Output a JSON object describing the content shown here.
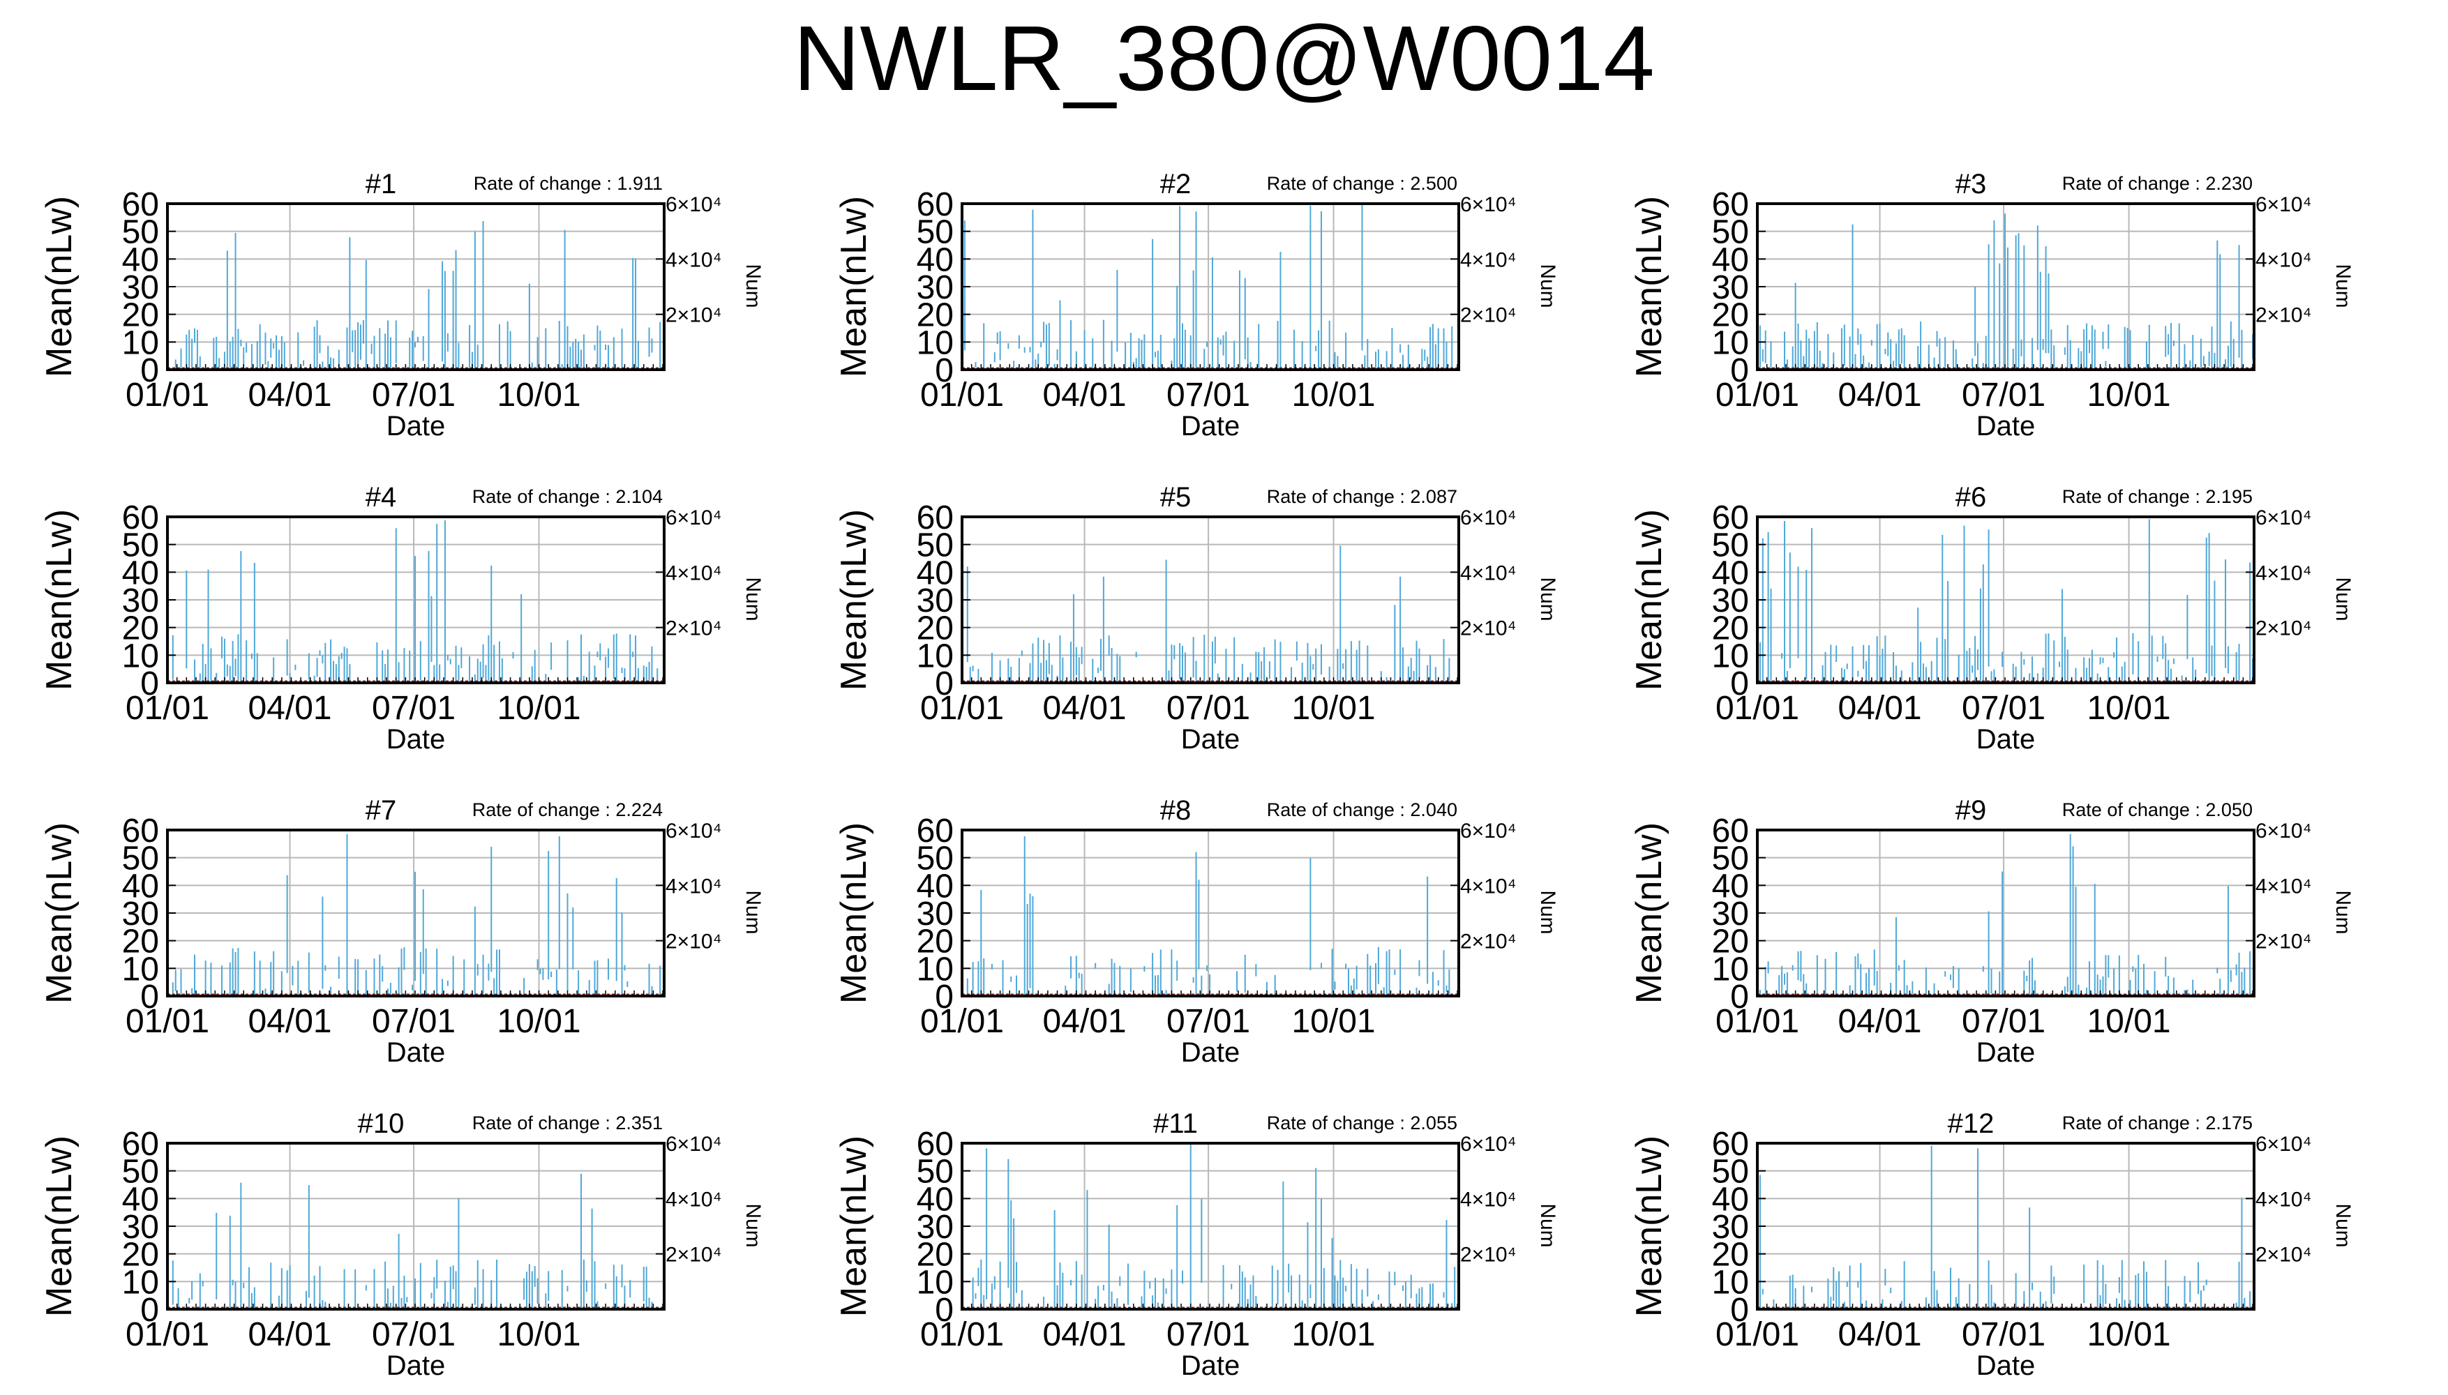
{
  "page": {
    "title": "NWLR_380@W0014"
  },
  "colors": {
    "bar": "#4fa8d8",
    "grid": "#b8b8b8",
    "axis": "#000000",
    "baseline": "#8a2a2a"
  },
  "chart_data": [
    {
      "panel": "#1",
      "type": "bar",
      "rate_label": "Rate of change : 1.911",
      "xlabel": "Date",
      "ylabel": "Mean(nLw)",
      "y2label": "Num",
      "x_ticks": [
        "01/01",
        "04/01",
        "07/01",
        "10/01"
      ],
      "y_ticks": [
        0,
        10,
        20,
        30,
        40,
        50,
        60
      ],
      "y2_ticks": [
        "2×10⁴",
        "4×10⁴",
        "6×10⁴"
      ],
      "ylim": [
        0,
        60
      ],
      "grid": true,
      "seed": 11,
      "max_value": 60,
      "density": 0.55,
      "high_days": [
        [
          140,
          190
        ],
        [
          200,
          260
        ]
      ]
    },
    {
      "panel": "#2",
      "type": "bar",
      "rate_label": "Rate of change : 2.500",
      "xlabel": "Date",
      "ylabel": "Mean(nLw)",
      "y2label": "Num",
      "x_ticks": [
        "01/01",
        "04/01",
        "07/01",
        "10/01"
      ],
      "y_ticks": [
        0,
        10,
        20,
        30,
        40,
        50,
        60
      ],
      "y2_ticks": [
        "2×10⁴",
        "4×10⁴",
        "6×10⁴"
      ],
      "ylim": [
        0,
        60
      ],
      "grid": true,
      "seed": 22,
      "max_value": 60,
      "density": 0.55,
      "high_days": [
        [
          165,
          175
        ],
        [
          205,
          215
        ]
      ]
    },
    {
      "panel": "#3",
      "type": "bar",
      "rate_label": "Rate of change : 2.230",
      "xlabel": "Date",
      "ylabel": "Mean(nLw)",
      "y2label": "Num",
      "x_ticks": [
        "01/01",
        "04/01",
        "07/01",
        "10/01"
      ],
      "y_ticks": [
        0,
        10,
        20,
        30,
        40,
        50,
        60
      ],
      "y2_ticks": [
        "2×10⁴",
        "4×10⁴",
        "6×10⁴"
      ],
      "ylim": [
        0,
        60
      ],
      "grid": true,
      "seed": 33,
      "max_value": 60,
      "density": 0.55,
      "high_days": [
        [
          170,
          215
        ]
      ]
    },
    {
      "panel": "#4",
      "type": "bar",
      "rate_label": "Rate of change : 2.104",
      "xlabel": "Date",
      "ylabel": "Mean(nLw)",
      "y2label": "Num",
      "x_ticks": [
        "01/01",
        "04/01",
        "07/01",
        "10/01"
      ],
      "y_ticks": [
        0,
        10,
        20,
        30,
        40,
        50,
        60
      ],
      "y2_ticks": [
        "2×10⁴",
        "4×10⁴",
        "6×10⁴"
      ],
      "ylim": [
        0,
        60
      ],
      "grid": true,
      "seed": 44,
      "max_value": 60,
      "density": 0.55,
      "high_days": [
        [
          145,
          200
        ]
      ]
    },
    {
      "panel": "#5",
      "type": "bar",
      "rate_label": "Rate of change : 2.087",
      "xlabel": "Date",
      "ylabel": "Mean(nLw)",
      "y2label": "Num",
      "x_ticks": [
        "01/01",
        "04/01",
        "07/01",
        "10/01"
      ],
      "y_ticks": [
        0,
        10,
        20,
        30,
        40,
        50,
        60
      ],
      "y2_ticks": [
        "2×10⁴",
        "4×10⁴",
        "6×10⁴"
      ],
      "ylim": [
        0,
        60
      ],
      "grid": true,
      "seed": 55,
      "max_value": 60,
      "density": 0.5,
      "high_days": [
        [
          120,
          150
        ]
      ]
    },
    {
      "panel": "#6",
      "type": "bar",
      "rate_label": "Rate of change : 2.195",
      "xlabel": "Date",
      "ylabel": "Mean(nLw)",
      "y2label": "Num",
      "x_ticks": [
        "01/01",
        "04/01",
        "07/01",
        "10/01"
      ],
      "y_ticks": [
        0,
        10,
        20,
        30,
        40,
        50,
        60
      ],
      "y2_ticks": [
        "2×10⁴",
        "4×10⁴",
        "6×10⁴"
      ],
      "ylim": [
        0,
        60
      ],
      "grid": true,
      "seed": 66,
      "max_value": 60,
      "density": 0.5,
      "high_days": [
        [
          0,
          60
        ],
        [
          150,
          175
        ],
        [
          325,
          365
        ]
      ]
    },
    {
      "panel": "#7",
      "type": "bar",
      "rate_label": "Rate of change : 2.224",
      "xlabel": "Date",
      "ylabel": "Mean(nLw)",
      "y2label": "Num",
      "x_ticks": [
        "01/01",
        "04/01",
        "07/01",
        "10/01"
      ],
      "y_ticks": [
        0,
        10,
        20,
        30,
        40,
        50,
        60
      ],
      "y2_ticks": [
        "2×10⁴",
        "4×10⁴",
        "6×10⁴"
      ],
      "ylim": [
        0,
        60
      ],
      "grid": true,
      "seed": 77,
      "max_value": 60,
      "density": 0.45,
      "high_days": [
        [
          0,
          30
        ],
        [
          180,
          190
        ],
        [
          280,
          300
        ]
      ]
    },
    {
      "panel": "#8",
      "type": "bar",
      "rate_label": "Rate of change : 2.040",
      "xlabel": "Date",
      "ylabel": "Mean(nLw)",
      "y2label": "Num",
      "x_ticks": [
        "01/01",
        "04/01",
        "07/01",
        "10/01"
      ],
      "y_ticks": [
        0,
        10,
        20,
        30,
        40,
        50,
        60
      ],
      "y2_ticks": [
        "2×10⁴",
        "4×10⁴",
        "6×10⁴"
      ],
      "ylim": [
        0,
        60
      ],
      "grid": true,
      "seed": 88,
      "max_value": 60,
      "density": 0.4,
      "high_days": [
        [
          40,
          60
        ],
        [
          160,
          175
        ]
      ]
    },
    {
      "panel": "#9",
      "type": "bar",
      "rate_label": "Rate of change : 2.050",
      "xlabel": "Date",
      "ylabel": "Mean(nLw)",
      "y2label": "Num",
      "x_ticks": [
        "01/01",
        "04/01",
        "07/01",
        "10/01"
      ],
      "y_ticks": [
        0,
        10,
        20,
        30,
        40,
        50,
        60
      ],
      "y2_ticks": [
        "2×10⁴",
        "4×10⁴",
        "6×10⁴"
      ],
      "ylim": [
        0,
        60
      ],
      "grid": true,
      "seed": 99,
      "max_value": 60,
      "density": 0.4,
      "high_days": [
        [
          160,
          170
        ]
      ]
    },
    {
      "panel": "#10",
      "type": "bar",
      "rate_label": "Rate of change : 2.351",
      "xlabel": "Date",
      "ylabel": "Mean(nLw)",
      "y2label": "Num",
      "x_ticks": [
        "01/01",
        "04/01",
        "07/01",
        "10/01"
      ],
      "y_ticks": [
        0,
        10,
        20,
        30,
        40,
        50,
        60
      ],
      "y2_ticks": [
        "2×10⁴",
        "4×10⁴",
        "6×10⁴"
      ],
      "ylim": [
        0,
        60
      ],
      "grid": true,
      "seed": 111,
      "max_value": 60,
      "density": 0.4,
      "high_days": [
        [
          30,
          40
        ],
        [
          280,
          300
        ]
      ]
    },
    {
      "panel": "#11",
      "type": "bar",
      "rate_label": "Rate of change : 2.055",
      "xlabel": "Date",
      "ylabel": "Mean(nLw)",
      "y2label": "Num",
      "x_ticks": [
        "01/01",
        "04/01",
        "07/01",
        "10/01"
      ],
      "y_ticks": [
        0,
        10,
        20,
        30,
        40,
        50,
        60
      ],
      "y2_ticks": [
        "2×10⁴",
        "4×10⁴",
        "6×10⁴"
      ],
      "ylim": [
        0,
        60
      ],
      "grid": true,
      "seed": 122,
      "max_value": 60,
      "density": 0.45,
      "high_days": [
        [
          30,
          45
        ],
        [
          165,
          175
        ]
      ]
    },
    {
      "panel": "#12",
      "type": "bar",
      "rate_label": "Rate of change : 2.175",
      "xlabel": "Date",
      "ylabel": "Mean(nLw)",
      "y2label": "Num",
      "x_ticks": [
        "01/01",
        "04/01",
        "07/01",
        "10/01"
      ],
      "y_ticks": [
        0,
        10,
        20,
        30,
        40,
        50,
        60
      ],
      "y2_ticks": [
        "2×10⁴",
        "4×10⁴",
        "6×10⁴"
      ],
      "ylim": [
        0,
        60
      ],
      "grid": true,
      "seed": 133,
      "max_value": 60,
      "density": 0.35,
      "high_days": [
        [
          160,
          170
        ],
        [
          280,
          290
        ]
      ]
    }
  ]
}
